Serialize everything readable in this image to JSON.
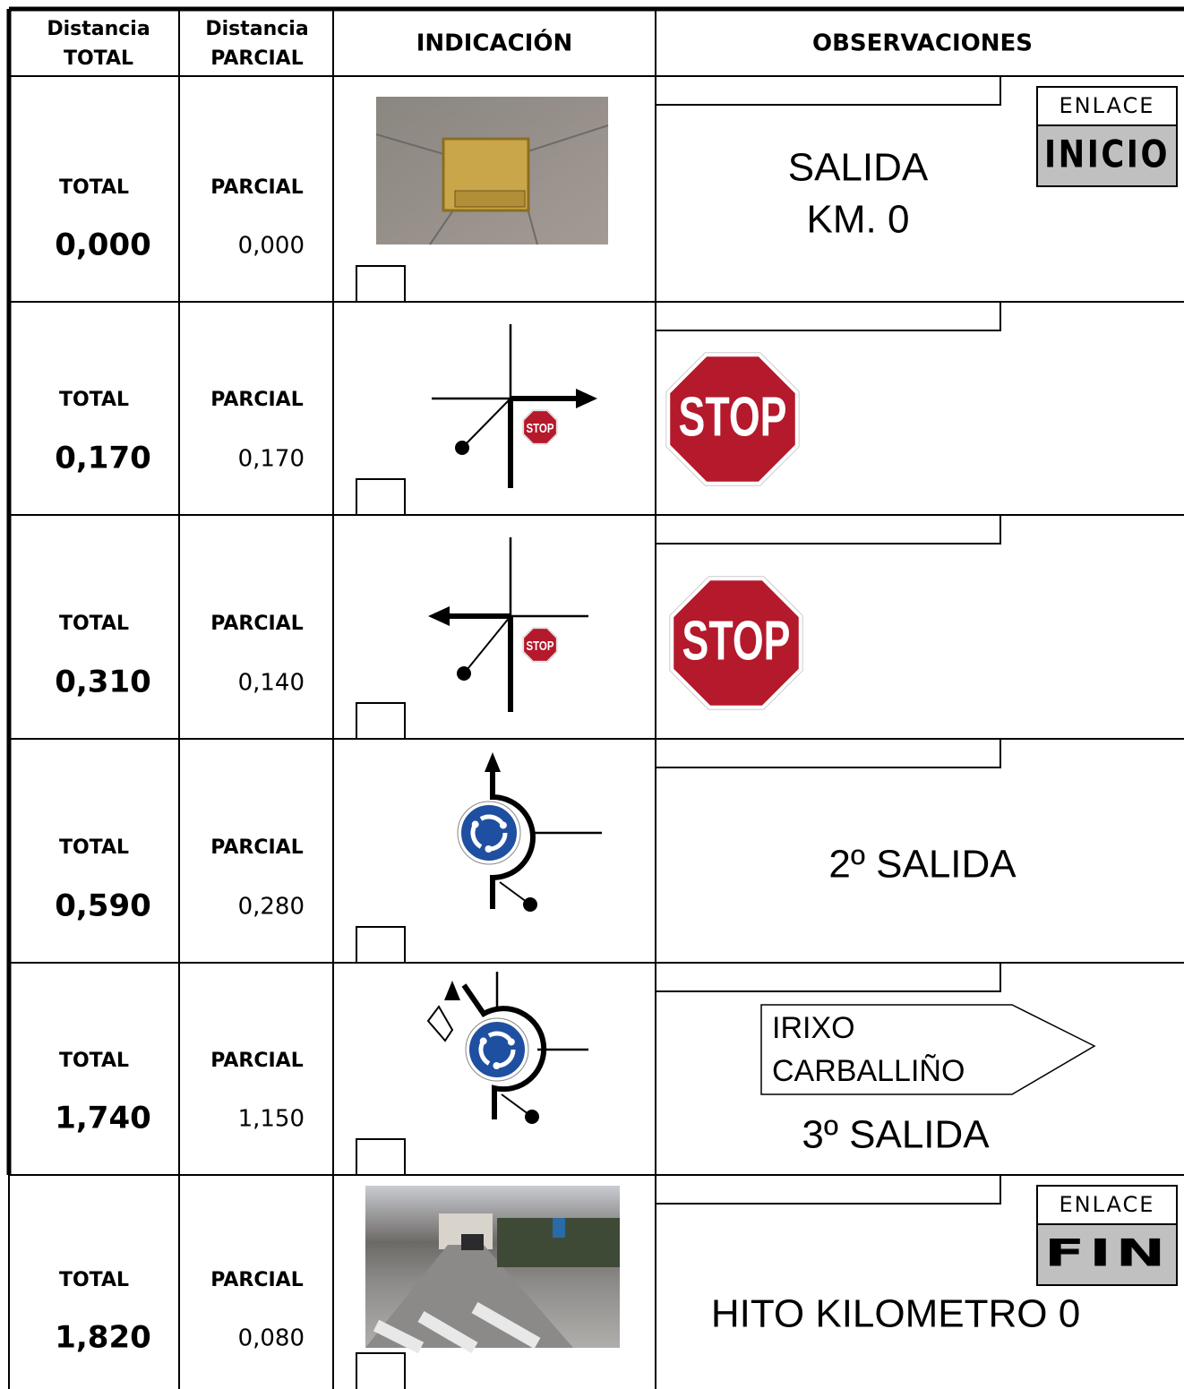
{
  "header": {
    "total": [
      "Distancia",
      "TOTAL"
    ],
    "partial": [
      "Distancia",
      "PARCIAL"
    ],
    "indication": "INDICACIÓN",
    "observations": "OBSERVACIONES"
  },
  "rows": [
    {
      "total_label": "TOTAL",
      "total": "0,000",
      "partial_label": "PARCIAL",
      "partial": "0,000",
      "observations": [
        "SALIDA",
        "KM. 0"
      ],
      "badge": {
        "top": "ENLACE",
        "bottom": "INICIO"
      }
    },
    {
      "total_label": "TOTAL",
      "total": "0,170",
      "partial_label": "PARCIAL",
      "partial": "0,170",
      "diagram_sign": "STOP",
      "sign": "STOP"
    },
    {
      "total_label": "TOTAL",
      "total": "0,310",
      "partial_label": "PARCIAL",
      "partial": "0,140",
      "diagram_sign": "STOP",
      "sign": "STOP"
    },
    {
      "total_label": "TOTAL",
      "total": "0,590",
      "partial_label": "PARCIAL",
      "partial": "0,280",
      "observations": [
        "2º SALIDA"
      ]
    },
    {
      "total_label": "TOTAL",
      "total": "1,740",
      "partial_label": "PARCIAL",
      "partial": "1,150",
      "direction_sign": [
        "IRIXO",
        "CARBALLIÑO"
      ],
      "observations": [
        "3º SALIDA"
      ]
    },
    {
      "total_label": "TOTAL",
      "total": "1,820",
      "partial_label": "PARCIAL",
      "partial": "0,080",
      "observations": [
        "HITO KILOMETRO 0"
      ],
      "badge": {
        "top": "ENLACE",
        "bottom": "FIN"
      }
    }
  ]
}
